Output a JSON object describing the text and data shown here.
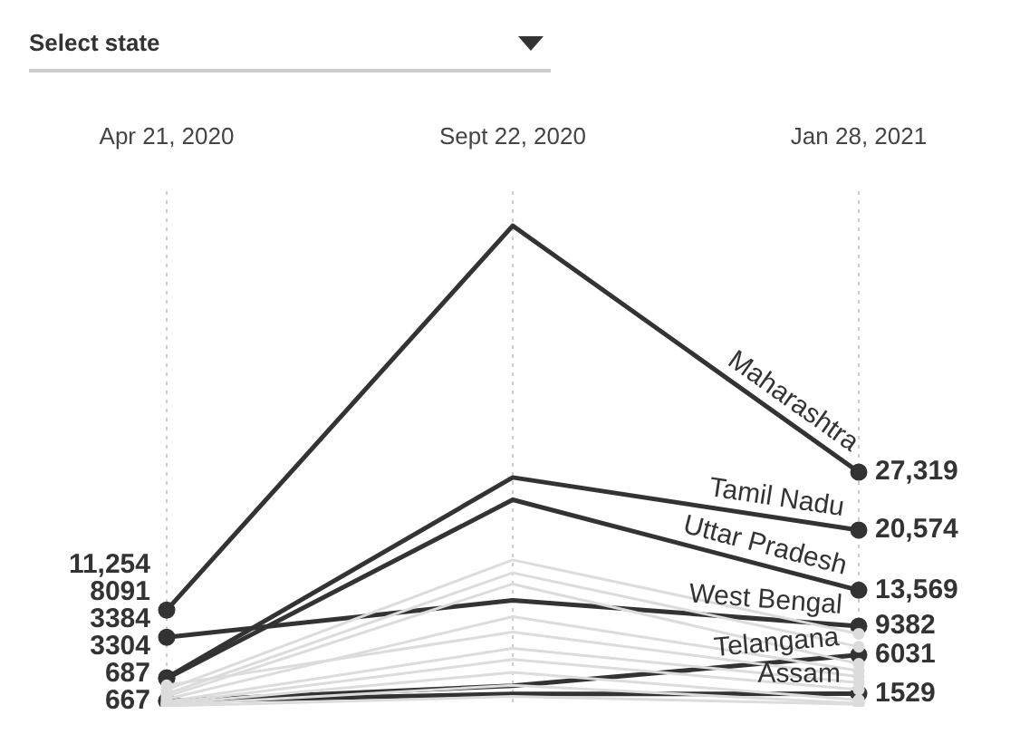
{
  "chart_data": {
    "type": "line",
    "annotations": [
      "Select state"
    ],
    "categories": [
      "Apr 21, 2020",
      "Sept 22, 2020",
      "Jan 28, 2021"
    ],
    "grid": "x",
    "marker": "circle",
    "series": [
      {
        "color": "#dcdcdc",
        "values": [
          2000,
          17100,
          8500
        ]
      },
      {
        "color": "#dcdcdc",
        "values": [
          1500,
          15600,
          7000
        ]
      },
      {
        "color": "#dcdcdc",
        "values": [
          1200,
          14300,
          5000
        ]
      },
      {
        "color": "#dcdcdc",
        "values": [
          900,
          10500,
          4200
        ]
      },
      {
        "color": "#dcdcdc",
        "values": [
          2500,
          8700,
          3500
        ]
      },
      {
        "color": "#dcdcdc",
        "values": [
          600,
          6800,
          2800
        ]
      },
      {
        "color": "#dcdcdc",
        "values": [
          400,
          5500,
          2000
        ]
      },
      {
        "color": "#dcdcdc",
        "values": [
          300,
          4000,
          800
        ]
      },
      {
        "color": "#dcdcdc",
        "values": [
          200,
          2500,
          400
        ]
      },
      {
        "color": "#dcdcdc",
        "values": [
          100,
          1200,
          300
        ]
      },
      {
        "name": "Maharashtra",
        "color": "#333333",
        "values": [
          11254,
          56000,
          27319
        ],
        "value_labels": [
          "11,254",
          null,
          "27,319"
        ]
      },
      {
        "name": "Tamil Nadu",
        "color": "#333333",
        "values": [
          3384,
          26700,
          20574
        ],
        "value_labels": [
          "3384",
          null,
          "20,574"
        ]
      },
      {
        "name": "Uttar Pradesh",
        "color": "#333333",
        "values": [
          3304,
          24100,
          13569
        ],
        "value_labels": [
          "3304",
          null,
          "13,569"
        ]
      },
      {
        "name": "West Bengal",
        "color": "#333333",
        "values": [
          8091,
          12400,
          9382
        ],
        "value_labels": [
          "8091",
          null,
          "9382"
        ]
      },
      {
        "name": "Telangana",
        "color": "#333333",
        "values": [
          687,
          2450,
          6031
        ],
        "value_labels": [
          "687",
          null,
          "6031"
        ]
      },
      {
        "name": "Assam",
        "color": "#333333",
        "values": [
          667,
          1500,
          1529
        ],
        "value_labels": [
          "667",
          null,
          "1529"
        ]
      }
    ]
  }
}
